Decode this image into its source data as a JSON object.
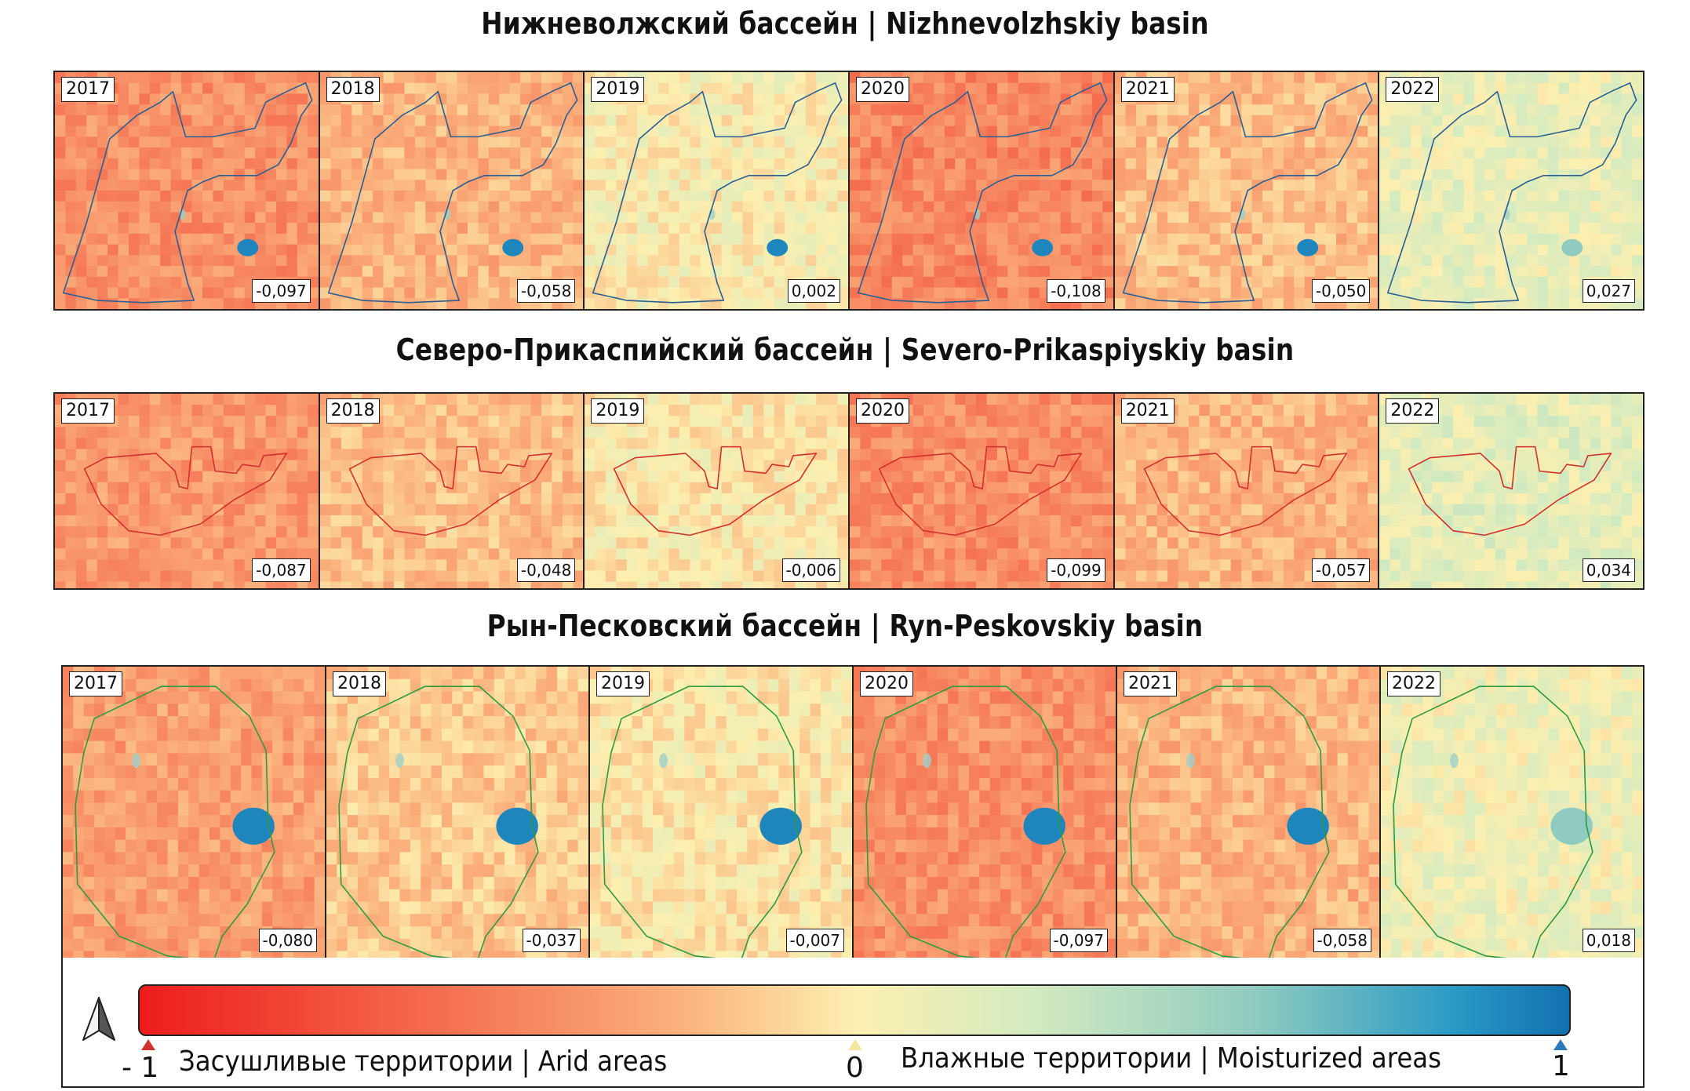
{
  "sections": [
    {
      "title": "Нижневолжский бассейн | Nizhnevolzhskiy basin",
      "boundary_color": "#2b5f93",
      "panels": [
        {
          "year": "2017",
          "value": "-0,097",
          "index": -0.097
        },
        {
          "year": "2018",
          "value": "-0,058",
          "index": -0.058
        },
        {
          "year": "2019",
          "value": "0,002",
          "index": 0.002
        },
        {
          "year": "2020",
          "value": "-0,108",
          "index": -0.108
        },
        {
          "year": "2021",
          "value": "-0,050",
          "index": -0.05
        },
        {
          "year": "2022",
          "value": "0,027",
          "index": 0.027
        }
      ]
    },
    {
      "title": "Северо-Прикаспийский бассейн | Severo-Prikaspiyskiy basin",
      "boundary_color": "#d0312d",
      "panels": [
        {
          "year": "2017",
          "value": "-0,087",
          "index": -0.087
        },
        {
          "year": "2018",
          "value": "-0,048",
          "index": -0.048
        },
        {
          "year": "2019",
          "value": "-0,006",
          "index": -0.006
        },
        {
          "year": "2020",
          "value": "-0,099",
          "index": -0.099
        },
        {
          "year": "2021",
          "value": "-0,057",
          "index": -0.057
        },
        {
          "year": "2022",
          "value": "0,034",
          "index": 0.034
        }
      ]
    },
    {
      "title": "Рын-Песковский бассейн | Ryn-Peskovskiy basin",
      "boundary_color": "#2e9b3e",
      "panels": [
        {
          "year": "2017",
          "value": "-0,080",
          "index": -0.08
        },
        {
          "year": "2018",
          "value": "-0,037",
          "index": -0.037
        },
        {
          "year": "2019",
          "value": "-0,007",
          "index": -0.007
        },
        {
          "year": "2020",
          "value": "-0,097",
          "index": -0.097
        },
        {
          "year": "2021",
          "value": "-0,058",
          "index": -0.058
        },
        {
          "year": "2022",
          "value": "0,018",
          "index": 0.018
        }
      ]
    }
  ],
  "legend": {
    "min_label": "- 1",
    "mid_label": "0",
    "max_label": "1",
    "arid_label": "Засушливые территории | Arid areas",
    "moist_label": "Влажные территории | Moisturized areas",
    "min_color": "#ee1c1c",
    "mid_color": "#fcefb0",
    "max_color": "#1270b0",
    "north_arrow": "north-arrow-icon"
  }
}
